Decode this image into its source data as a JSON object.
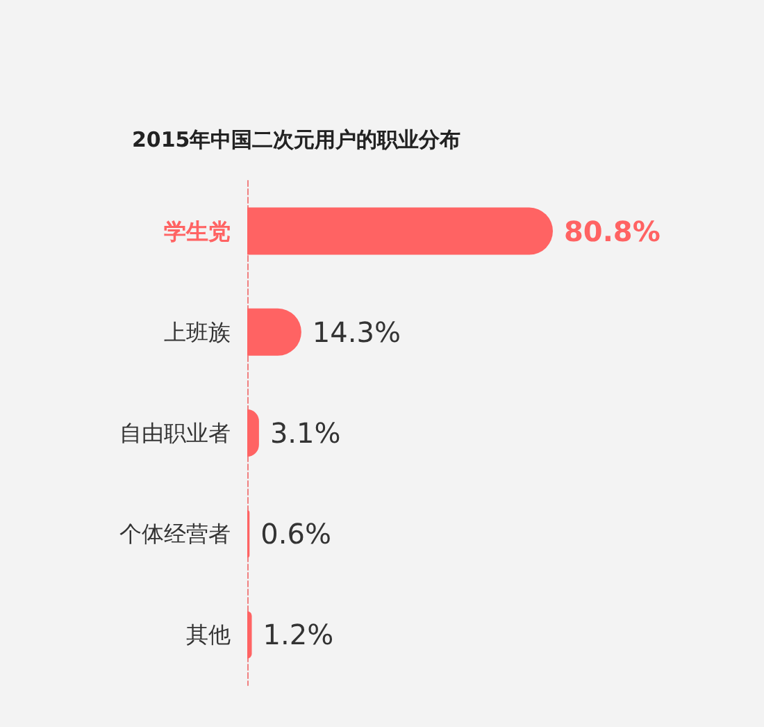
{
  "chart_data": {
    "type": "bar",
    "orientation": "horizontal",
    "title": "2015年中国二次元用户的职业分布",
    "categories": [
      "学生党",
      "上班族",
      "自由职业者",
      "个体经营者",
      "其他"
    ],
    "values": [
      80.8,
      14.3,
      3.1,
      0.6,
      1.2
    ],
    "value_labels": [
      "80.8%",
      "14.3%",
      "3.1%",
      "0.6%",
      "1.2%"
    ],
    "color": "#ff6363"
  }
}
